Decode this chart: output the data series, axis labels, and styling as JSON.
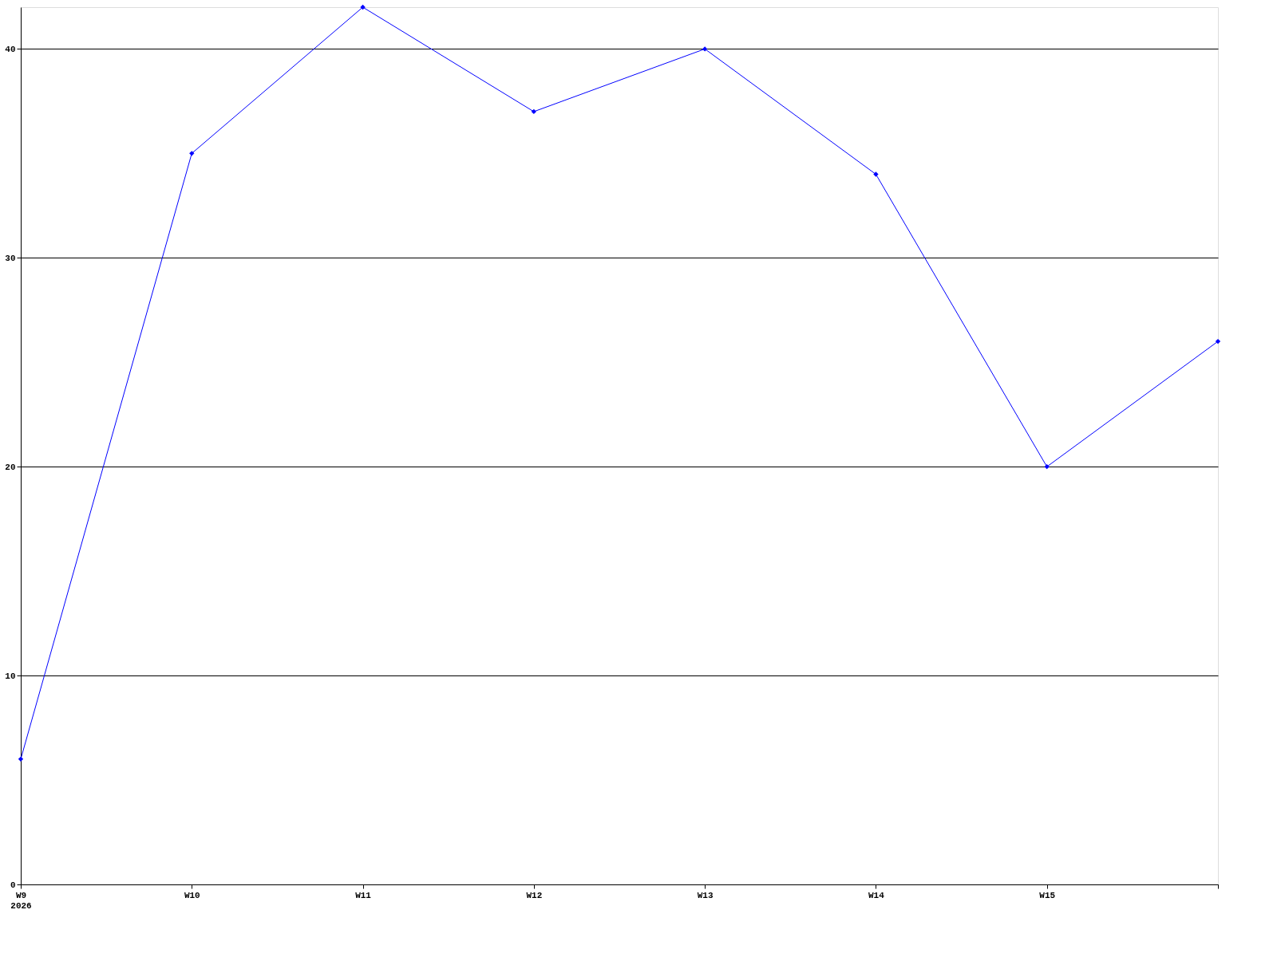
{
  "chart_data": {
    "type": "line",
    "categories": [
      "W9\n2026",
      "W10",
      "W11",
      "W12",
      "W13",
      "W14",
      "W15",
      null
    ],
    "series": [
      {
        "color": "#0000ff",
        "values": [
          6,
          35,
          42,
          37,
          40,
          34,
          20,
          26
        ]
      }
    ],
    "ylim": [
      0,
      42
    ],
    "yticks": [
      0,
      10,
      20,
      30,
      40
    ],
    "grid": "y",
    "marker": "diamond",
    "line_style": "solid"
  }
}
